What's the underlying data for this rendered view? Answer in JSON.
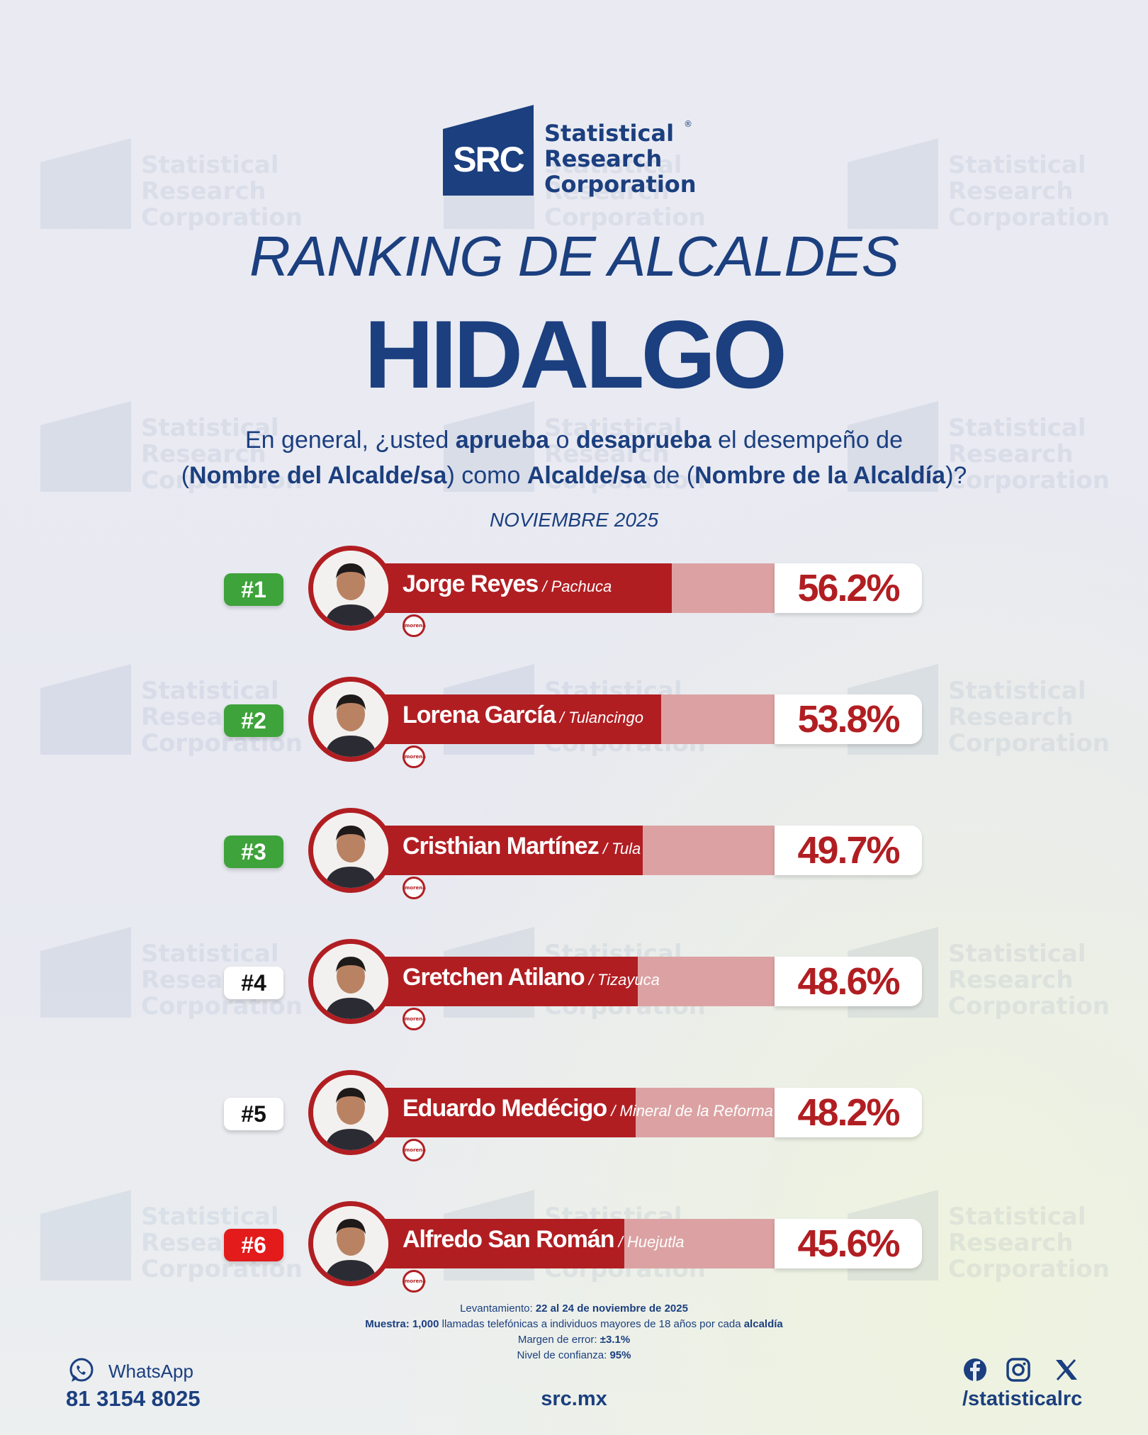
{
  "brand": {
    "logo_text": "SRC",
    "name_lines": [
      "Statistical",
      "Research",
      "Corporation"
    ],
    "registered": "®"
  },
  "title": "RANKING DE ALCALDES",
  "state": "HIDALGO",
  "question": {
    "p1": "En general, ¿usted ",
    "b1": "aprueba",
    "p2": " o ",
    "b2": "desaprueba",
    "p3": " el desempeño de",
    "p4": "(",
    "b3": "Nombre del Alcalde/sa",
    "p5": ") como ",
    "b4": "Alcalde/sa",
    "p6": " de (",
    "b5": "Nombre de la Alcaldía",
    "p7": ")?"
  },
  "period": "NOVIEMBRE 2025",
  "party_label": "morena",
  "colors": {
    "navy": "#1b3f7f",
    "bar": "#b11e22",
    "bar_track": "#dca2a3",
    "rank_green": "#3ea33a",
    "rank_red": "#e31b1b"
  },
  "chart_data": {
    "type": "bar",
    "orientation": "horizontal",
    "unit": "%",
    "categories": [
      "Jorge Reyes",
      "Lorena García",
      "Cristhian Martínez",
      "Gretchen Atilano",
      "Eduardo Medécigo",
      "Alfredo San Román"
    ],
    "values": [
      56.2,
      53.8,
      49.7,
      48.6,
      48.2,
      45.6
    ],
    "xlim": [
      0,
      100
    ],
    "items": [
      {
        "rank": "#1",
        "rank_color": "green",
        "name": "Jorge Reyes",
        "municipality": "Pachuca",
        "value": 56.2,
        "label": "56.2%"
      },
      {
        "rank": "#2",
        "rank_color": "green",
        "name": "Lorena García",
        "municipality": "Tulancingo",
        "value": 53.8,
        "label": "53.8%"
      },
      {
        "rank": "#3",
        "rank_color": "green",
        "name": "Cristhian Martínez",
        "municipality": "Tula",
        "value": 49.7,
        "label": "49.7%"
      },
      {
        "rank": "#4",
        "rank_color": "white",
        "name": "Gretchen Atilano",
        "municipality": "Tizayuca",
        "value": 48.6,
        "label": "48.6%"
      },
      {
        "rank": "#5",
        "rank_color": "white",
        "name": "Eduardo Medécigo",
        "municipality": "Mineral de la Reforma",
        "value": 48.2,
        "label": "48.2%"
      },
      {
        "rank": "#6",
        "rank_color": "red",
        "name": "Alfredo San Román",
        "municipality": "Huejutla",
        "value": 45.6,
        "label": "45.6%"
      }
    ]
  },
  "notes": {
    "l1_label": "Levantamiento: ",
    "l1_value": "22 al 24 de noviembre de 2025",
    "l2_label": "Muestra: ",
    "l2_value": "1,000",
    "l2_text": " llamadas telefónicas a individuos mayores de 18 años por cada ",
    "l2_bold": "alcaldía",
    "l3_label": "Margen de error: ",
    "l3_value": "±3.1%",
    "l4_label": "Nivel de confianza: ",
    "l4_value": "95%"
  },
  "footer": {
    "whatsapp_label": "WhatsApp",
    "whatsapp_number": "81 3154 8025",
    "website": "src.mx",
    "handle": "/statisticalrc",
    "icons": [
      "whatsapp-icon",
      "facebook-icon",
      "instagram-icon",
      "x-icon"
    ]
  }
}
